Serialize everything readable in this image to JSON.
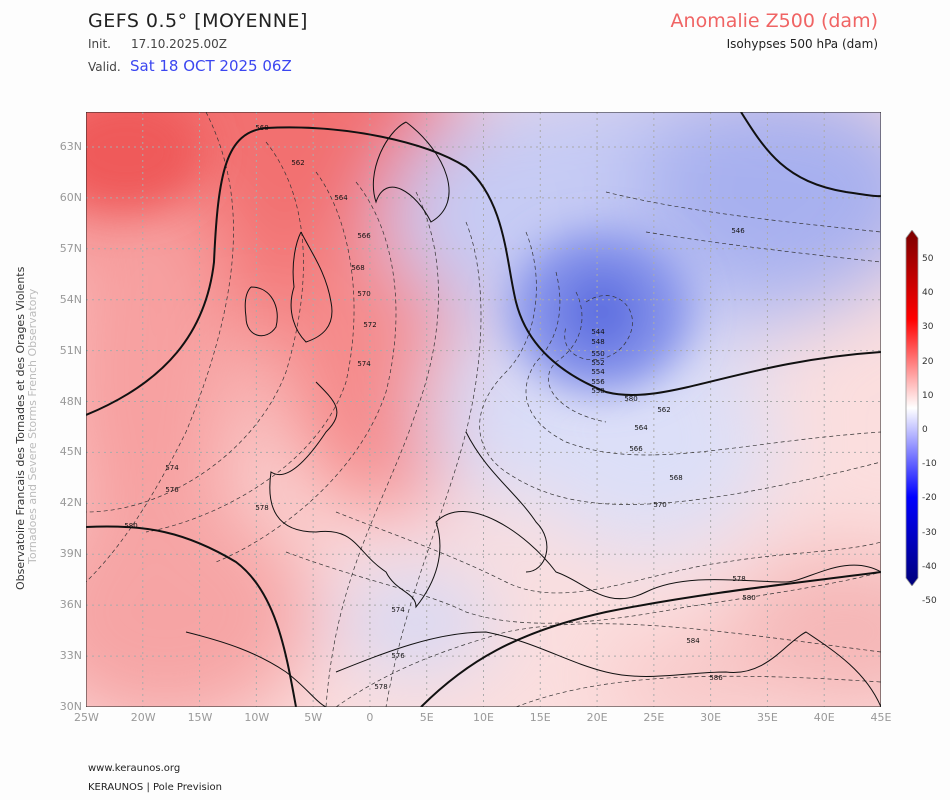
{
  "header": {
    "title": "GEFS 0.5° [MOYENNE]",
    "init_label": "Init.",
    "init_value": "17.10.2025.00Z",
    "valid_label": "Valid.",
    "valid_value": "Sat 18 OCT 2025 06Z",
    "field_title": "Anomalie Z500 (dam)",
    "field_subtitle": "Isohypses 500 hPa (dam)"
  },
  "side_text": {
    "line1": "Observatoire Francais des Tornades et des Orages Violents",
    "line2": "Tornadoes and Severe Storms French Observatory"
  },
  "axes": {
    "lon_ticks": [
      "25W",
      "20W",
      "15W",
      "10W",
      "5W",
      "0",
      "5E",
      "10E",
      "15E",
      "20E",
      "25E",
      "30E",
      "35E",
      "40E",
      "45E"
    ],
    "lat_ticks": [
      "63N",
      "60N",
      "57N",
      "54N",
      "51N",
      "48N",
      "45N",
      "42N",
      "39N",
      "36N",
      "33N",
      "30N"
    ]
  },
  "colorbar": {
    "ticks": [
      "50",
      "40",
      "30",
      "20",
      "10",
      "0",
      "-10",
      "-20",
      "-30",
      "-40",
      "-50"
    ],
    "colors": {
      "max": "#7a0000",
      "pos": "#ff0000",
      "zero": "#ffffff",
      "neg": "#0000ff",
      "min": "#00007a"
    }
  },
  "contour_labels": [
    "560",
    "562",
    "564",
    "566",
    "568",
    "570",
    "572",
    "574",
    "574",
    "576",
    "578",
    "580",
    "546",
    "544",
    "548",
    "550",
    "552",
    "554",
    "556",
    "558",
    "580",
    "562",
    "564",
    "566",
    "568",
    "570",
    "574",
    "576",
    "578",
    "578",
    "580",
    "584",
    "586"
  ],
  "credits": {
    "site": "www.keraunos.org",
    "org": "KERAUNOS | Pole Prevision"
  }
}
